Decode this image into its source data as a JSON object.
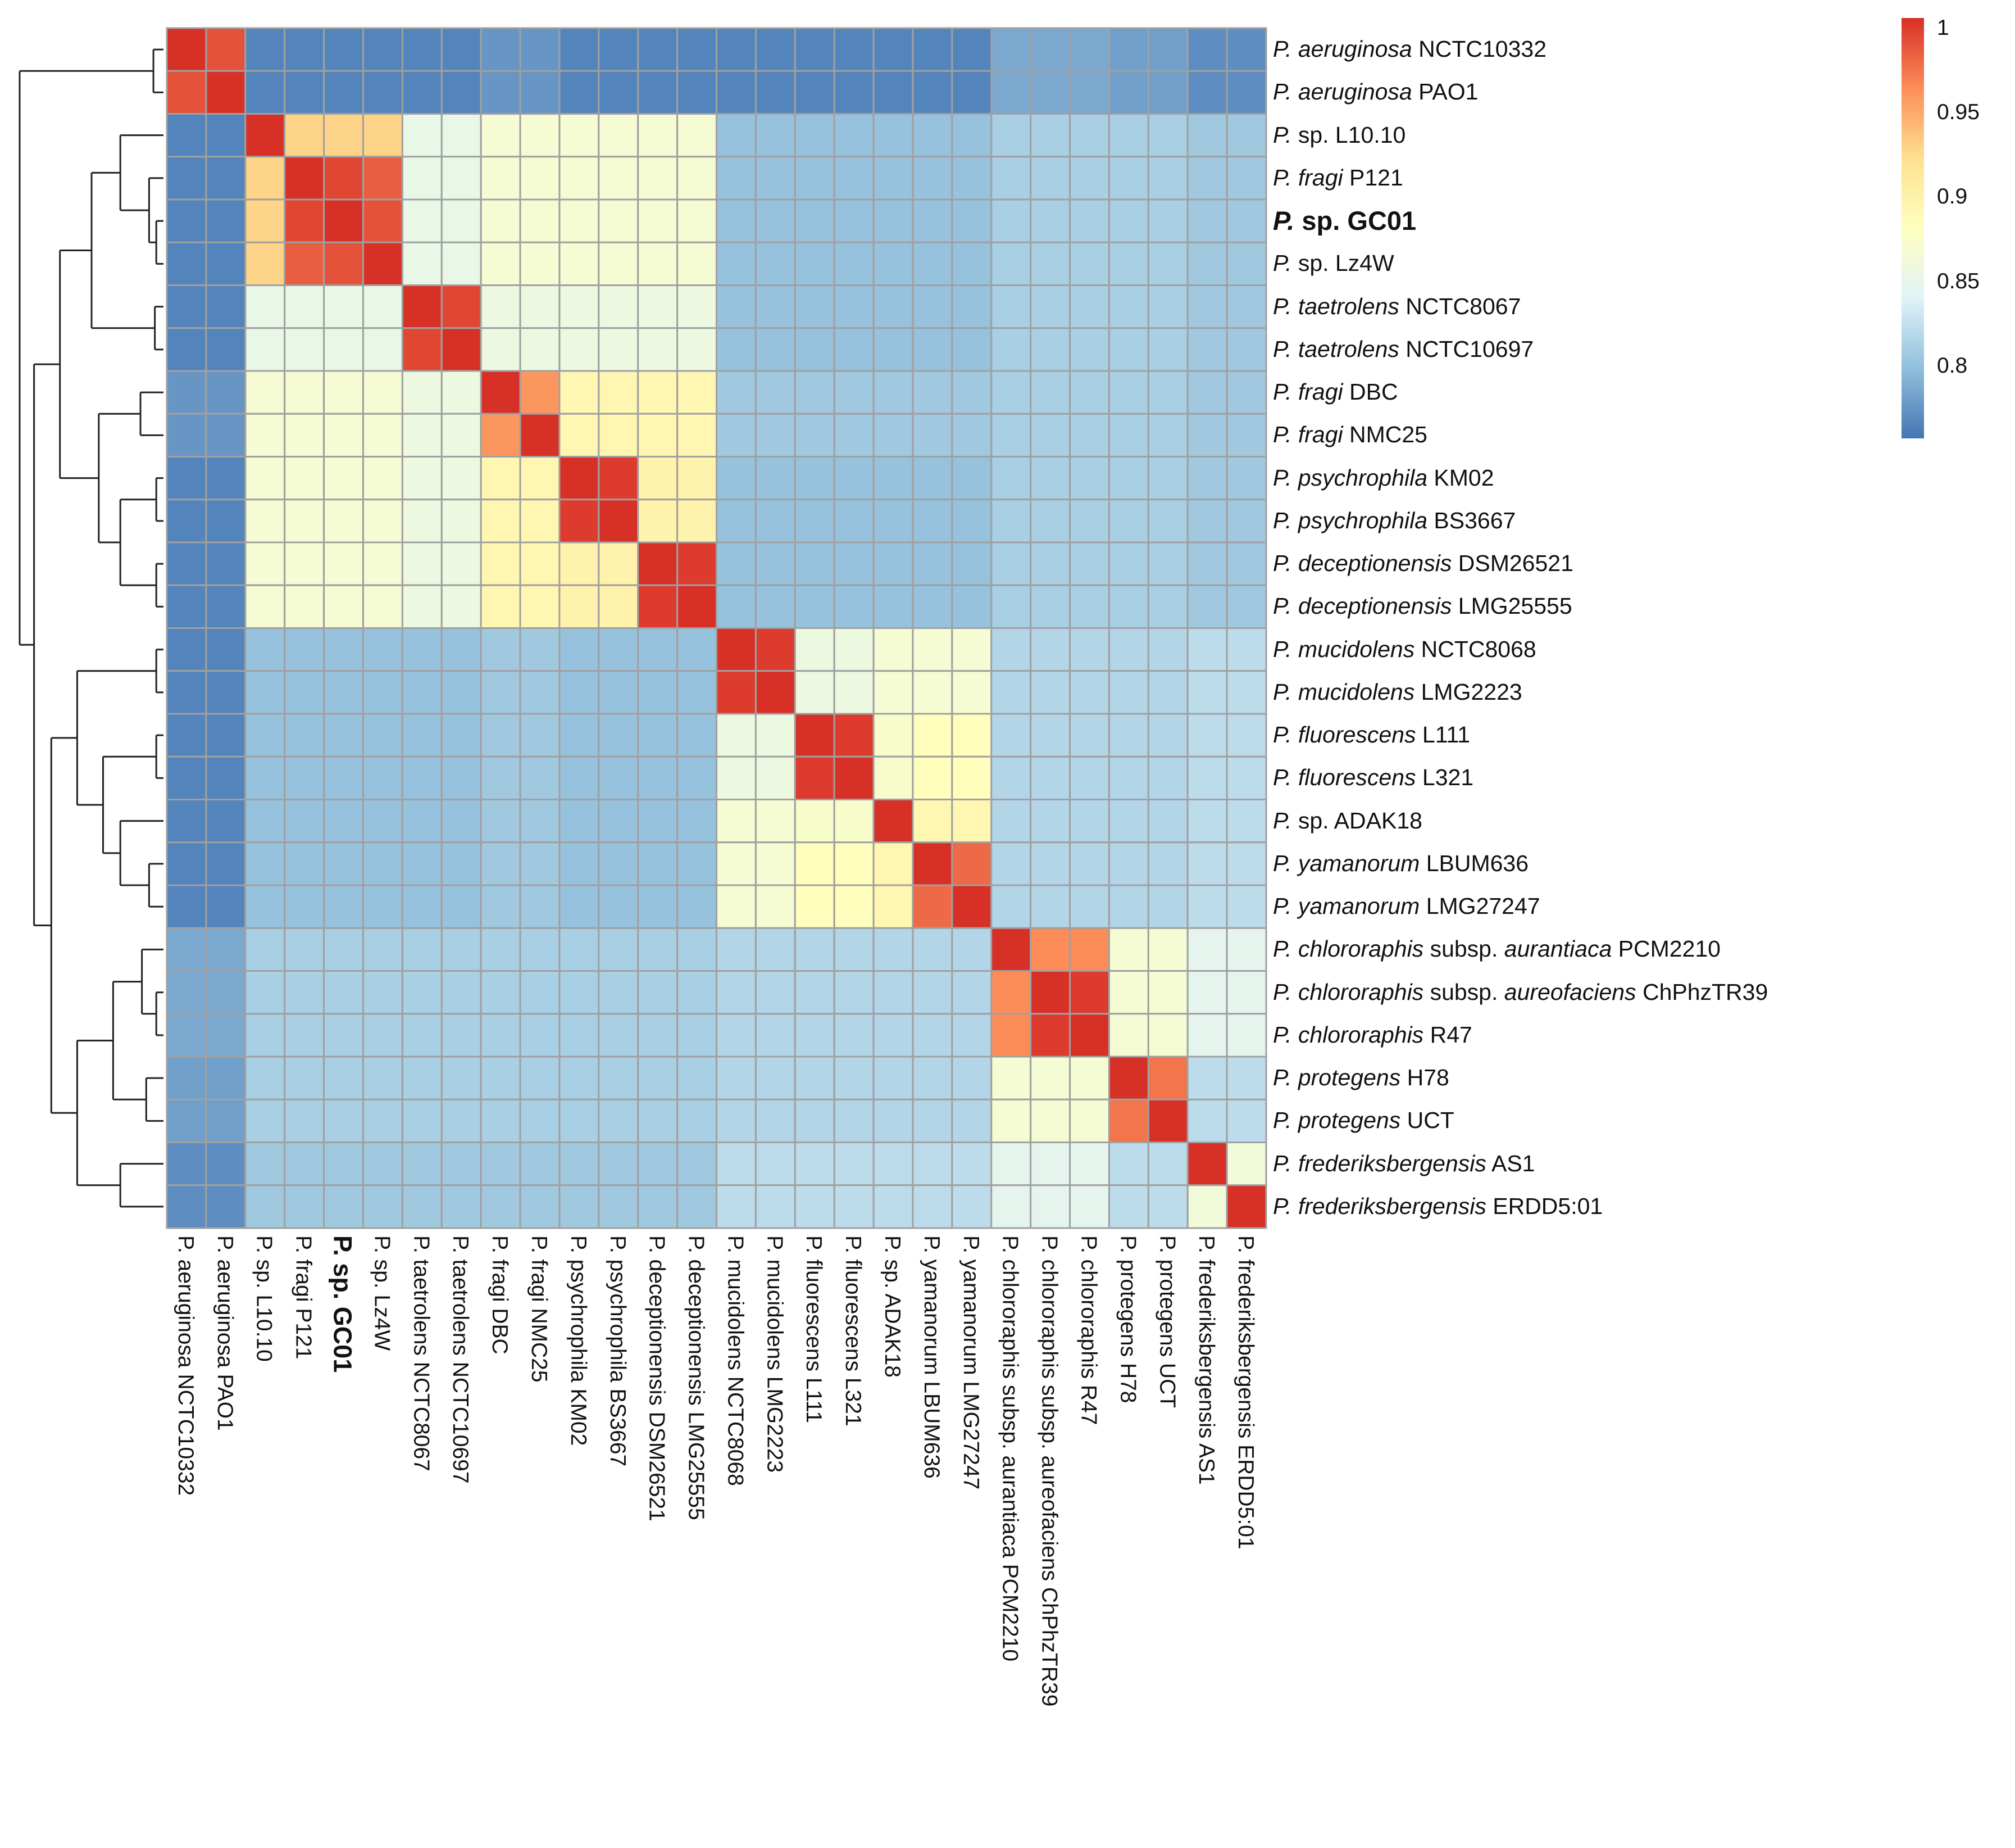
{
  "chart_data": {
    "type": "heatmap",
    "title": "",
    "row_labels": [
      [
        {
          "text": "P. aeruginosa",
          "italic": true
        },
        {
          "text": " NCTC10332",
          "italic": false
        }
      ],
      [
        {
          "text": "P. aeruginosa",
          "italic": true
        },
        {
          "text": " PAO1",
          "italic": false
        }
      ],
      [
        {
          "text": "P.",
          "italic": true
        },
        {
          "text": " sp. L10.10",
          "italic": false
        }
      ],
      [
        {
          "text": "P. fragi",
          "italic": true
        },
        {
          "text": " P121",
          "italic": false
        }
      ],
      [
        {
          "text": "P.",
          "italic": true
        },
        {
          "text": " sp. GC01",
          "italic": false
        }
      ],
      [
        {
          "text": "P.",
          "italic": true
        },
        {
          "text": " sp. Lz4W",
          "italic": false
        }
      ],
      [
        {
          "text": "P. taetrolens",
          "italic": true
        },
        {
          "text": " NCTC8067",
          "italic": false
        }
      ],
      [
        {
          "text": "P. taetrolens",
          "italic": true
        },
        {
          "text": " NCTC10697",
          "italic": false
        }
      ],
      [
        {
          "text": "P. fragi",
          "italic": true
        },
        {
          "text": " DBC",
          "italic": false
        }
      ],
      [
        {
          "text": "P. fragi",
          "italic": true
        },
        {
          "text": " NMC25",
          "italic": false
        }
      ],
      [
        {
          "text": "P. psychrophila",
          "italic": true
        },
        {
          "text": " KM02",
          "italic": false
        }
      ],
      [
        {
          "text": "P. psychrophila",
          "italic": true
        },
        {
          "text": " BS3667",
          "italic": false
        }
      ],
      [
        {
          "text": "P. deceptionensis",
          "italic": true
        },
        {
          "text": " DSM26521",
          "italic": false
        }
      ],
      [
        {
          "text": "P. deceptionensis",
          "italic": true
        },
        {
          "text": " LMG25555",
          "italic": false
        }
      ],
      [
        {
          "text": "P. mucidolens",
          "italic": true
        },
        {
          "text": " NCTC8068",
          "italic": false
        }
      ],
      [
        {
          "text": "P. mucidolens",
          "italic": true
        },
        {
          "text": " LMG2223",
          "italic": false
        }
      ],
      [
        {
          "text": "P. fluorescens",
          "italic": true
        },
        {
          "text": " L111",
          "italic": false
        }
      ],
      [
        {
          "text": "P. fluorescens",
          "italic": true
        },
        {
          "text": " L321",
          "italic": false
        }
      ],
      [
        {
          "text": "P.",
          "italic": true
        },
        {
          "text": " sp. ADAK18",
          "italic": false
        }
      ],
      [
        {
          "text": "P. yamanorum",
          "italic": true
        },
        {
          "text": " LBUM636",
          "italic": false
        }
      ],
      [
        {
          "text": "P. yamanorum",
          "italic": true
        },
        {
          "text": " LMG27247",
          "italic": false
        }
      ],
      [
        {
          "text": "P. chlororaphis",
          "italic": true
        },
        {
          "text": " subsp. ",
          "italic": false
        },
        {
          "text": "aurantiaca",
          "italic": true
        },
        {
          "text": " PCM2210",
          "italic": false
        }
      ],
      [
        {
          "text": "P. chlororaphis",
          "italic": true
        },
        {
          "text": " subsp. ",
          "italic": false
        },
        {
          "text": "aureofaciens",
          "italic": true
        },
        {
          "text": " ChPhzTR39",
          "italic": false
        }
      ],
      [
        {
          "text": "P. chlororaphis",
          "italic": true
        },
        {
          "text": " R47",
          "italic": false
        }
      ],
      [
        {
          "text": "P. protegens",
          "italic": true
        },
        {
          "text": " H78",
          "italic": false
        }
      ],
      [
        {
          "text": "P. protegens",
          "italic": true
        },
        {
          "text": " UCT",
          "italic": false
        }
      ],
      [
        {
          "text": "P. frederiksbergensis",
          "italic": true
        },
        {
          "text": " AS1",
          "italic": false
        }
      ],
      [
        {
          "text": "P. frederiksbergensis",
          "italic": true
        },
        {
          "text": " ERDD5:01",
          "italic": false
        }
      ]
    ],
    "col_labels": [
      "P. aeruginosa NCTC10332",
      "P. aeruginosa PAO1",
      "P. sp. L10.10",
      "P. fragi P121",
      "P. sp. GC01",
      "P. sp. Lz4W",
      "P. taetrolens NCTC8067",
      "P. taetrolens NCTC10697",
      "P. fragi DBC",
      "P. fragi NMC25",
      "P. psychrophila KM02",
      "P. psychrophila BS3667",
      "P. deceptionensis DSM26521",
      "P. deceptionensis LMG25555",
      "P. mucidolens NCTC8068",
      "P. mucidolens LMG2223",
      "P. fluorescens L111",
      "P. fluorescens L321",
      "P. sp. ADAK18",
      "P. yamanorum LBUM636",
      "P. yamanorum LMG27247",
      "P. chlororaphis subsp. aurantiaca PCM2210",
      "P. chlororaphis subsp. aureofaciens ChPhzTR39",
      "P. chlororaphis R47",
      "P. protegens H78",
      "P. protegens UCT",
      "P. frederiksbergensis AS1",
      "P. frederiksbergensis ERDD5:01"
    ],
    "emphasized_index": 4,
    "values": [
      [
        1,
        0.985,
        0.765,
        0.765,
        0.765,
        0.765,
        0.765,
        0.765,
        0.775,
        0.775,
        0.765,
        0.765,
        0.765,
        0.765,
        0.765,
        0.765,
        0.765,
        0.765,
        0.765,
        0.765,
        0.765,
        0.785,
        0.785,
        0.785,
        0.78,
        0.78,
        0.77,
        0.77
      ],
      [
        0.985,
        1,
        0.765,
        0.765,
        0.765,
        0.765,
        0.765,
        0.765,
        0.775,
        0.775,
        0.765,
        0.765,
        0.765,
        0.765,
        0.765,
        0.765,
        0.765,
        0.765,
        0.765,
        0.765,
        0.765,
        0.785,
        0.785,
        0.785,
        0.78,
        0.78,
        0.77,
        0.77
      ],
      [
        0.765,
        0.765,
        1,
        0.925,
        0.925,
        0.925,
        0.85,
        0.85,
        0.865,
        0.865,
        0.865,
        0.865,
        0.865,
        0.865,
        0.8,
        0.8,
        0.8,
        0.8,
        0.8,
        0.8,
        0.8,
        0.81,
        0.81,
        0.81,
        0.81,
        0.81,
        0.805,
        0.805
      ],
      [
        0.765,
        0.765,
        0.925,
        1,
        0.99,
        0.98,
        0.85,
        0.85,
        0.865,
        0.865,
        0.865,
        0.865,
        0.865,
        0.865,
        0.8,
        0.8,
        0.8,
        0.8,
        0.8,
        0.8,
        0.8,
        0.81,
        0.81,
        0.81,
        0.81,
        0.81,
        0.805,
        0.805
      ],
      [
        0.765,
        0.765,
        0.925,
        0.99,
        1,
        0.985,
        0.85,
        0.85,
        0.865,
        0.865,
        0.865,
        0.865,
        0.865,
        0.865,
        0.8,
        0.8,
        0.8,
        0.8,
        0.8,
        0.8,
        0.8,
        0.81,
        0.81,
        0.81,
        0.81,
        0.81,
        0.805,
        0.805
      ],
      [
        0.765,
        0.765,
        0.925,
        0.98,
        0.985,
        1,
        0.85,
        0.85,
        0.865,
        0.865,
        0.865,
        0.865,
        0.865,
        0.865,
        0.8,
        0.8,
        0.8,
        0.8,
        0.8,
        0.8,
        0.8,
        0.81,
        0.81,
        0.81,
        0.81,
        0.81,
        0.805,
        0.805
      ],
      [
        0.765,
        0.765,
        0.85,
        0.85,
        0.85,
        0.85,
        1,
        0.99,
        0.855,
        0.855,
        0.855,
        0.855,
        0.855,
        0.855,
        0.8,
        0.8,
        0.8,
        0.8,
        0.8,
        0.8,
        0.8,
        0.81,
        0.81,
        0.81,
        0.81,
        0.81,
        0.805,
        0.805
      ],
      [
        0.765,
        0.765,
        0.85,
        0.85,
        0.85,
        0.85,
        0.99,
        1,
        0.855,
        0.855,
        0.855,
        0.855,
        0.855,
        0.855,
        0.8,
        0.8,
        0.8,
        0.8,
        0.8,
        0.8,
        0.8,
        0.81,
        0.81,
        0.81,
        0.81,
        0.81,
        0.805,
        0.805
      ],
      [
        0.775,
        0.775,
        0.865,
        0.865,
        0.865,
        0.865,
        0.855,
        0.855,
        1,
        0.955,
        0.89,
        0.89,
        0.89,
        0.89,
        0.805,
        0.805,
        0.805,
        0.805,
        0.805,
        0.805,
        0.805,
        0.81,
        0.81,
        0.81,
        0.81,
        0.81,
        0.805,
        0.805
      ],
      [
        0.775,
        0.775,
        0.865,
        0.865,
        0.865,
        0.865,
        0.855,
        0.855,
        0.955,
        1,
        0.89,
        0.89,
        0.89,
        0.89,
        0.805,
        0.805,
        0.805,
        0.805,
        0.805,
        0.805,
        0.805,
        0.81,
        0.81,
        0.81,
        0.81,
        0.81,
        0.805,
        0.805
      ],
      [
        0.765,
        0.765,
        0.865,
        0.865,
        0.865,
        0.865,
        0.855,
        0.855,
        0.89,
        0.89,
        1,
        0.995,
        0.895,
        0.895,
        0.8,
        0.8,
        0.8,
        0.8,
        0.8,
        0.8,
        0.8,
        0.81,
        0.81,
        0.81,
        0.81,
        0.81,
        0.805,
        0.805
      ],
      [
        0.765,
        0.765,
        0.865,
        0.865,
        0.865,
        0.865,
        0.855,
        0.855,
        0.89,
        0.89,
        0.995,
        1,
        0.895,
        0.895,
        0.8,
        0.8,
        0.8,
        0.8,
        0.8,
        0.8,
        0.8,
        0.81,
        0.81,
        0.81,
        0.81,
        0.81,
        0.805,
        0.805
      ],
      [
        0.765,
        0.765,
        0.865,
        0.865,
        0.865,
        0.865,
        0.855,
        0.855,
        0.89,
        0.89,
        0.895,
        0.895,
        1,
        0.995,
        0.8,
        0.8,
        0.8,
        0.8,
        0.8,
        0.8,
        0.8,
        0.81,
        0.81,
        0.81,
        0.81,
        0.81,
        0.805,
        0.805
      ],
      [
        0.765,
        0.765,
        0.865,
        0.865,
        0.865,
        0.865,
        0.855,
        0.855,
        0.89,
        0.89,
        0.895,
        0.895,
        0.995,
        1,
        0.8,
        0.8,
        0.8,
        0.8,
        0.8,
        0.8,
        0.8,
        0.81,
        0.81,
        0.81,
        0.81,
        0.81,
        0.805,
        0.805
      ],
      [
        0.765,
        0.765,
        0.8,
        0.8,
        0.8,
        0.8,
        0.8,
        0.8,
        0.805,
        0.805,
        0.8,
        0.8,
        0.8,
        0.8,
        1,
        0.995,
        0.855,
        0.855,
        0.865,
        0.865,
        0.865,
        0.815,
        0.815,
        0.815,
        0.815,
        0.815,
        0.82,
        0.82
      ],
      [
        0.765,
        0.765,
        0.8,
        0.8,
        0.8,
        0.8,
        0.8,
        0.8,
        0.805,
        0.805,
        0.8,
        0.8,
        0.8,
        0.8,
        0.995,
        1,
        0.855,
        0.855,
        0.865,
        0.865,
        0.865,
        0.815,
        0.815,
        0.815,
        0.815,
        0.815,
        0.82,
        0.82
      ],
      [
        0.765,
        0.765,
        0.8,
        0.8,
        0.8,
        0.8,
        0.8,
        0.8,
        0.805,
        0.805,
        0.8,
        0.8,
        0.8,
        0.8,
        0.855,
        0.855,
        1,
        0.995,
        0.87,
        0.88,
        0.88,
        0.815,
        0.815,
        0.815,
        0.815,
        0.815,
        0.82,
        0.82
      ],
      [
        0.765,
        0.765,
        0.8,
        0.8,
        0.8,
        0.8,
        0.8,
        0.8,
        0.805,
        0.805,
        0.8,
        0.8,
        0.8,
        0.8,
        0.855,
        0.855,
        0.995,
        1,
        0.87,
        0.88,
        0.88,
        0.815,
        0.815,
        0.815,
        0.815,
        0.815,
        0.82,
        0.82
      ],
      [
        0.765,
        0.765,
        0.8,
        0.8,
        0.8,
        0.8,
        0.8,
        0.8,
        0.805,
        0.805,
        0.8,
        0.8,
        0.8,
        0.8,
        0.865,
        0.865,
        0.87,
        0.87,
        1,
        0.89,
        0.89,
        0.815,
        0.815,
        0.815,
        0.815,
        0.815,
        0.82,
        0.82
      ],
      [
        0.765,
        0.765,
        0.8,
        0.8,
        0.8,
        0.8,
        0.8,
        0.8,
        0.805,
        0.805,
        0.8,
        0.8,
        0.8,
        0.8,
        0.865,
        0.865,
        0.88,
        0.88,
        0.89,
        1,
        0.975,
        0.815,
        0.815,
        0.815,
        0.815,
        0.815,
        0.82,
        0.82
      ],
      [
        0.765,
        0.765,
        0.8,
        0.8,
        0.8,
        0.8,
        0.8,
        0.8,
        0.805,
        0.805,
        0.8,
        0.8,
        0.8,
        0.8,
        0.865,
        0.865,
        0.88,
        0.88,
        0.89,
        0.975,
        1,
        0.815,
        0.815,
        0.815,
        0.815,
        0.815,
        0.82,
        0.82
      ],
      [
        0.785,
        0.785,
        0.81,
        0.81,
        0.81,
        0.81,
        0.81,
        0.81,
        0.81,
        0.81,
        0.81,
        0.81,
        0.81,
        0.81,
        0.815,
        0.815,
        0.815,
        0.815,
        0.815,
        0.815,
        0.815,
        1,
        0.96,
        0.96,
        0.865,
        0.865,
        0.845,
        0.845
      ],
      [
        0.785,
        0.785,
        0.81,
        0.81,
        0.81,
        0.81,
        0.81,
        0.81,
        0.81,
        0.81,
        0.81,
        0.81,
        0.81,
        0.81,
        0.815,
        0.815,
        0.815,
        0.815,
        0.815,
        0.815,
        0.815,
        0.96,
        1,
        0.995,
        0.865,
        0.865,
        0.845,
        0.845
      ],
      [
        0.785,
        0.785,
        0.81,
        0.81,
        0.81,
        0.81,
        0.81,
        0.81,
        0.81,
        0.81,
        0.81,
        0.81,
        0.81,
        0.81,
        0.815,
        0.815,
        0.815,
        0.815,
        0.815,
        0.815,
        0.815,
        0.96,
        0.995,
        1,
        0.865,
        0.865,
        0.845,
        0.845
      ],
      [
        0.78,
        0.78,
        0.81,
        0.81,
        0.81,
        0.81,
        0.81,
        0.81,
        0.81,
        0.81,
        0.81,
        0.81,
        0.81,
        0.81,
        0.815,
        0.815,
        0.815,
        0.815,
        0.815,
        0.815,
        0.815,
        0.865,
        0.865,
        0.865,
        1,
        0.97,
        0.82,
        0.82
      ],
      [
        0.78,
        0.78,
        0.81,
        0.81,
        0.81,
        0.81,
        0.81,
        0.81,
        0.81,
        0.81,
        0.81,
        0.81,
        0.81,
        0.81,
        0.815,
        0.815,
        0.815,
        0.815,
        0.815,
        0.815,
        0.815,
        0.865,
        0.865,
        0.865,
        0.97,
        1,
        0.82,
        0.82
      ],
      [
        0.77,
        0.77,
        0.805,
        0.805,
        0.805,
        0.805,
        0.805,
        0.805,
        0.805,
        0.805,
        0.805,
        0.805,
        0.805,
        0.805,
        0.82,
        0.82,
        0.82,
        0.82,
        0.82,
        0.82,
        0.82,
        0.845,
        0.845,
        0.845,
        0.82,
        0.82,
        1,
        0.86
      ],
      [
        0.77,
        0.77,
        0.805,
        0.805,
        0.805,
        0.805,
        0.805,
        0.805,
        0.805,
        0.805,
        0.805,
        0.805,
        0.805,
        0.805,
        0.82,
        0.82,
        0.82,
        0.82,
        0.82,
        0.82,
        0.82,
        0.845,
        0.845,
        0.845,
        0.82,
        0.82,
        0.86,
        1
      ]
    ],
    "color_range": [
      0.757,
      1.0
    ],
    "colormap": [
      "#4575B4",
      "#91BFDB",
      "#E0F3F8",
      "#FFFFBF",
      "#FEE090",
      "#FC8D59",
      "#D73027"
    ],
    "grid_color": "#A0A0A0",
    "colorbar": {
      "ticks": [
        {
          "value": 1,
          "label": "1"
        },
        {
          "value": 0.95,
          "label": "0.95"
        },
        {
          "value": 0.9,
          "label": "0.9"
        },
        {
          "value": 0.85,
          "label": "0.85"
        },
        {
          "value": 0.8,
          "label": "0.8"
        }
      ],
      "position": "right"
    },
    "dendrogram": "rows-left"
  }
}
